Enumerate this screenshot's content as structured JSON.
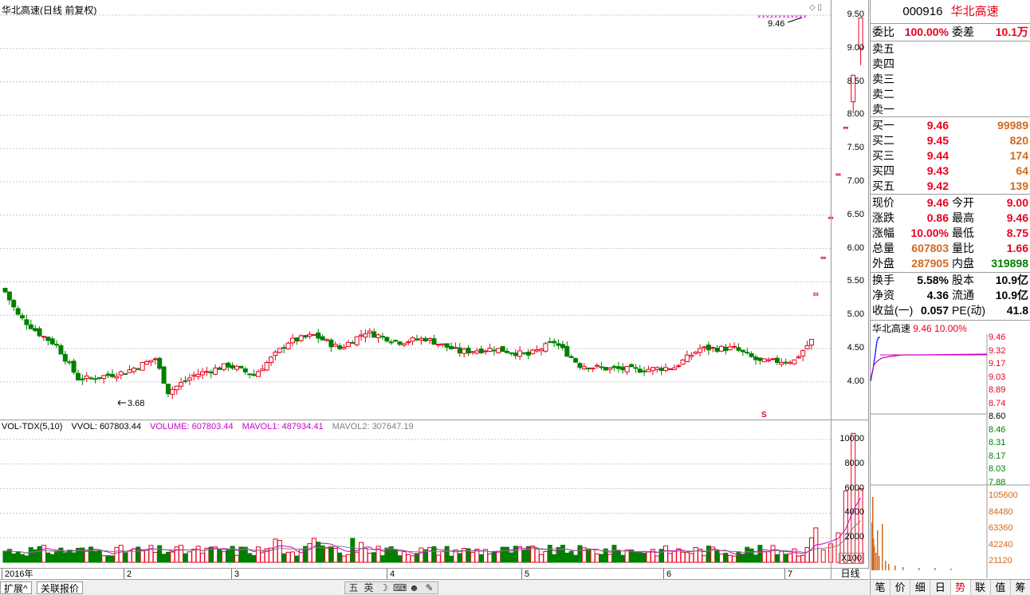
{
  "stock": {
    "code": "000916",
    "name": "华北高速"
  },
  "chart": {
    "title": "华北高速(日线 前复权)",
    "price_ticks": [
      "9.50",
      "9.00",
      "8.50",
      "8.00",
      "7.50",
      "7.00",
      "6.50",
      "6.00",
      "5.50",
      "5.00",
      "4.50",
      "4.00"
    ],
    "high_label": "9.46",
    "low_label": "3.68",
    "s_marker": "S"
  },
  "volume": {
    "indicator": "VOL-TDX(5,10)",
    "vvol": "VVOL: 607803.44",
    "volume": "VOLUME: 607803.44",
    "mavol1": "MAVOL1: 487934.41",
    "mavol2": "MAVOL2: 307647.19",
    "ticks": [
      "10000",
      "8000",
      "6000",
      "4000",
      "2000"
    ],
    "unit": "X100"
  },
  "dates": {
    "labels": [
      "2016年",
      "2",
      "3",
      "4",
      "5",
      "6",
      "7"
    ],
    "period": "日线"
  },
  "bottom_bar": {
    "expand": "扩展^",
    "related": "关联报价"
  },
  "ime": {
    "items": [
      "五",
      "英",
      "☽",
      "⌨",
      "☻",
      "✎"
    ]
  },
  "quote": {
    "weibi_lbl": "委比",
    "weibi": "100.00%",
    "weicha_lbl": "委差",
    "weicha": "10.1万",
    "sell": [
      {
        "label": "卖五"
      },
      {
        "label": "卖四"
      },
      {
        "label": "卖三"
      },
      {
        "label": "卖二"
      },
      {
        "label": "卖一"
      }
    ],
    "buy": [
      {
        "label": "买一",
        "price": "9.46",
        "vol": "99989"
      },
      {
        "label": "买二",
        "price": "9.45",
        "vol": "820"
      },
      {
        "label": "买三",
        "price": "9.44",
        "vol": "174"
      },
      {
        "label": "买四",
        "price": "9.43",
        "vol": "64"
      },
      {
        "label": "买五",
        "price": "9.42",
        "vol": "139"
      }
    ],
    "stats": [
      {
        "l1": "现价",
        "v1": "9.46",
        "l2": "今开",
        "v2": "9.00"
      },
      {
        "l1": "涨跌",
        "v1": "0.86",
        "l2": "最高",
        "v2": "9.46"
      },
      {
        "l1": "涨幅",
        "v1": "10.00%",
        "l2": "最低",
        "v2": "8.75"
      },
      {
        "l1": "总量",
        "v1": "607803",
        "l2": "量比",
        "v2": "1.66"
      },
      {
        "l1": "外盘",
        "v1": "287905",
        "l2": "内盘",
        "v2": "319898"
      }
    ],
    "fund": [
      {
        "l1": "换手",
        "v1": "5.58%",
        "l2": "股本",
        "v2": "10.9亿"
      },
      {
        "l1": "净资",
        "v1": "4.36",
        "l2": "流通",
        "v2": "10.9亿"
      },
      {
        "l1": "收益(一)",
        "v1": "0.057",
        "l2": "PE(动)",
        "v2": "41.8"
      }
    ]
  },
  "mini": {
    "title": "华北高速",
    "price": "9.46",
    "pct": "10.00%",
    "price_ticks": [
      "9.46",
      "9.32",
      "9.17",
      "9.03",
      "8.89",
      "8.74",
      "8.60",
      "8.46",
      "8.31",
      "8.17",
      "8.03",
      "7.88"
    ],
    "vol_ticks": [
      "105600",
      "84480",
      "63360",
      "42240",
      "21120"
    ]
  },
  "right_tabs": [
    "笔",
    "价",
    "细",
    "日",
    "势",
    "联",
    "值",
    "筹"
  ],
  "colors": {
    "up": "#e8001c",
    "down": "#008000",
    "ma1": "#cc00cc",
    "ma2": "#808080"
  }
}
